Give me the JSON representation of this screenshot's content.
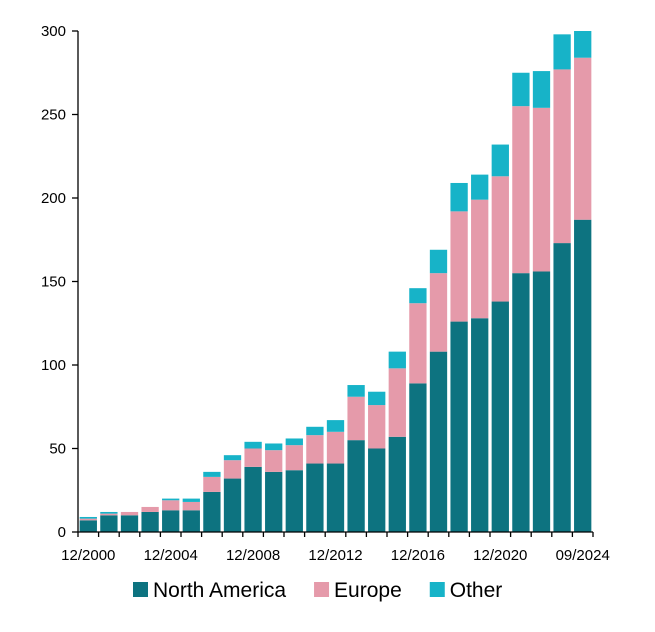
{
  "chart_data": {
    "type": "bar",
    "stacked": true,
    "title": "",
    "xlabel": "",
    "ylabel": "",
    "ylim": [
      0,
      300
    ],
    "yticks": [
      0,
      50,
      100,
      150,
      200,
      250,
      300
    ],
    "grid": false,
    "legend_position": "bottom",
    "x_tick_labels": [
      "12/2000",
      "12/2004",
      "12/2008",
      "12/2012",
      "12/2016",
      "12/2020",
      "09/2024"
    ],
    "x_tick_indices": [
      0,
      4,
      8,
      12,
      16,
      20,
      24
    ],
    "categories": [
      "12/2000",
      "12/2001",
      "12/2002",
      "12/2003",
      "12/2004",
      "12/2005",
      "12/2006",
      "12/2007",
      "12/2008",
      "12/2009",
      "12/2010",
      "12/2011",
      "12/2012",
      "12/2013",
      "12/2014",
      "12/2015",
      "12/2016",
      "12/2017",
      "12/2018",
      "12/2019",
      "12/2020",
      "12/2021",
      "12/2022",
      "12/2023",
      "09/2024"
    ],
    "series": [
      {
        "name": "North America",
        "color": "#0d7380",
        "values": [
          7,
          10,
          10,
          12,
          13,
          13,
          24,
          32,
          39,
          36,
          37,
          41,
          41,
          55,
          50,
          57,
          89,
          108,
          126,
          128,
          138,
          155,
          156,
          173,
          187
        ]
      },
      {
        "name": "Europe",
        "color": "#e59aaa",
        "values": [
          1,
          1,
          2,
          3,
          6,
          5,
          9,
          11,
          11,
          13,
          15,
          17,
          19,
          26,
          26,
          41,
          48,
          47,
          66,
          71,
          75,
          100,
          98,
          104,
          97
        ]
      },
      {
        "name": "Other",
        "color": "#17b3c8",
        "values": [
          1,
          1,
          0,
          0,
          1,
          2,
          3,
          3,
          4,
          4,
          4,
          5,
          7,
          7,
          8,
          10,
          9,
          14,
          17,
          15,
          19,
          20,
          22,
          21,
          16
        ]
      }
    ]
  }
}
